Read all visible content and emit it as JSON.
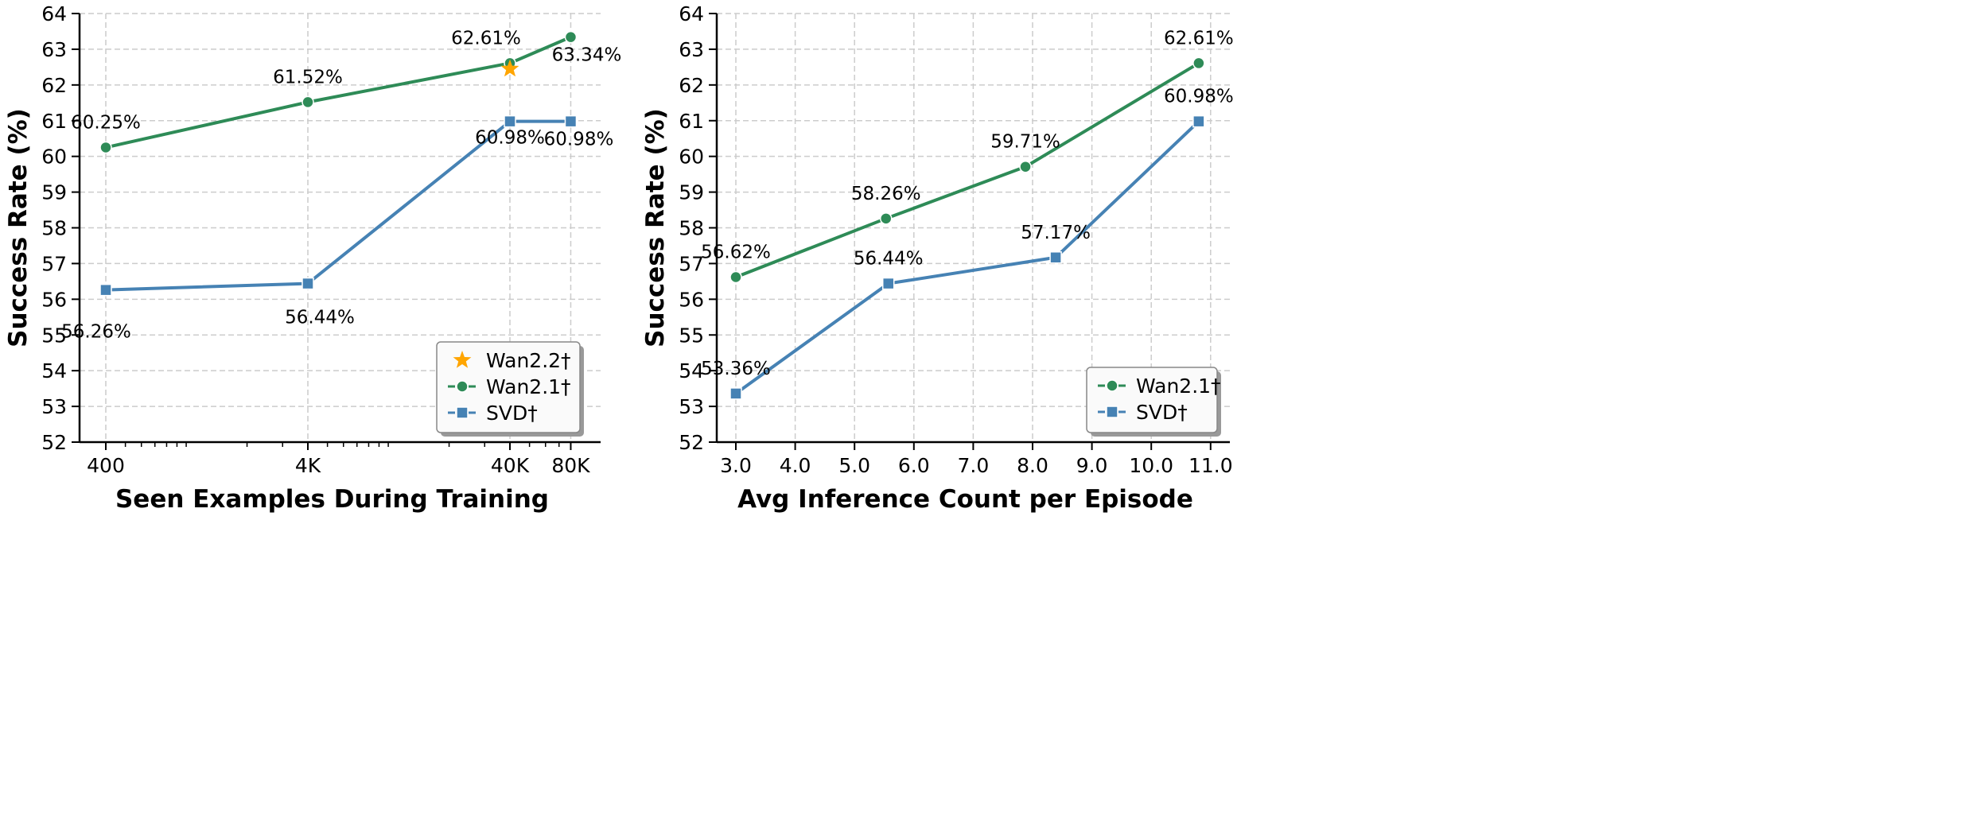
{
  "chart_data": [
    {
      "type": "line",
      "xlabel": "Seen Examples During Training",
      "ylabel": "Success Rate (%)",
      "x_scale": "log",
      "x_ticks": [
        400,
        4000,
        40000,
        80000
      ],
      "x_tick_labels": [
        "400",
        "4K",
        "40K",
        "80K"
      ],
      "ylim": [
        52,
        64
      ],
      "y_ticks": [
        52,
        53,
        54,
        55,
        56,
        57,
        58,
        59,
        60,
        61,
        62,
        63,
        64
      ],
      "grid": true,
      "legend_position": "bottom-right",
      "series": [
        {
          "name": "Wan2.2†",
          "color": "#FFA500",
          "marker": "star",
          "x": [
            40000
          ],
          "y": [
            62.45
          ],
          "labels": []
        },
        {
          "name": "Wan2.1†",
          "color": "#2E8B57",
          "marker": "circle",
          "x": [
            400,
            4000,
            40000,
            80000
          ],
          "y": [
            60.25,
            61.52,
            62.61,
            63.34
          ],
          "labels": [
            "60.25%",
            "61.52%",
            "62.61%",
            "63.34%"
          ]
        },
        {
          "name": "SVD†",
          "color": "#4682B4",
          "marker": "square",
          "x": [
            400,
            4000,
            40000,
            80000
          ],
          "y": [
            56.26,
            56.44,
            60.98,
            60.98
          ],
          "labels": [
            "56.26%",
            "56.44%",
            "60.98%",
            "60.98%"
          ]
        }
      ]
    },
    {
      "type": "line",
      "xlabel": "Avg Inference Count per Episode",
      "ylabel": "Success Rate (%)",
      "xlim": [
        2.7,
        11.6
      ],
      "x_ticks": [
        3,
        4,
        5,
        6,
        7,
        8,
        9,
        10,
        11
      ],
      "x_tick_labels": [
        "3.0",
        "4.0",
        "5.0",
        "6.0",
        "7.0",
        "8.0",
        "9.0",
        "10.0",
        "11.0"
      ],
      "ylim": [
        52,
        64
      ],
      "y_ticks": [
        52,
        53,
        54,
        55,
        56,
        57,
        58,
        59,
        60,
        61,
        62,
        63,
        64
      ],
      "grid": true,
      "legend_position": "bottom-right",
      "series": [
        {
          "name": "Wan2.1†",
          "color": "#2E8B57",
          "marker": "circle",
          "x": [
            3.0,
            5.53,
            7.88,
            10.8
          ],
          "y": [
            56.62,
            58.26,
            59.71,
            62.61
          ],
          "labels": [
            "56.62%",
            "58.26%",
            "59.71%",
            "62.61%"
          ]
        },
        {
          "name": "SVD†",
          "color": "#4682B4",
          "marker": "square",
          "x": [
            3.0,
            5.57,
            8.39,
            10.8
          ],
          "y": [
            53.36,
            56.44,
            57.17,
            60.98
          ],
          "labels": [
            "53.36%",
            "56.44%",
            "57.17%",
            "60.98%"
          ]
        }
      ]
    }
  ]
}
